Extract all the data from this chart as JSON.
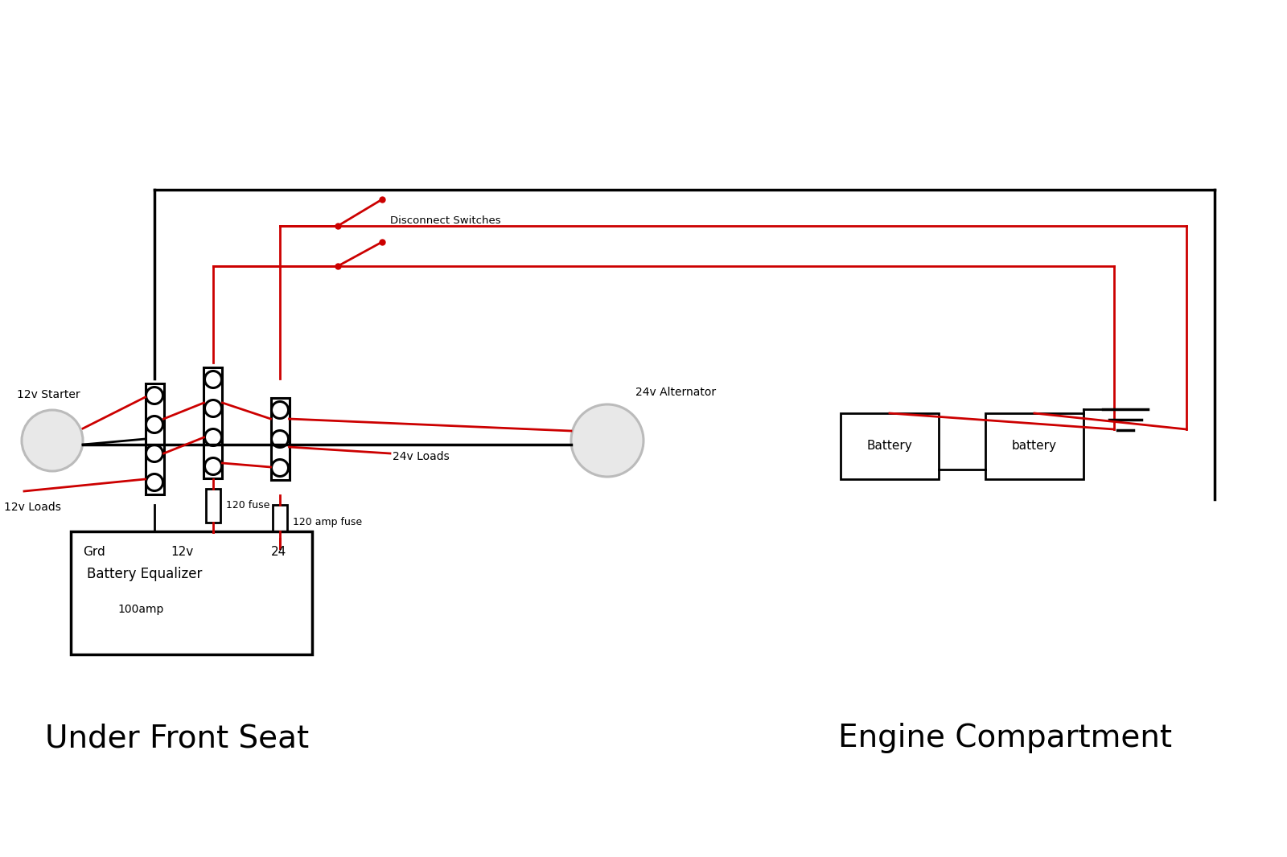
{
  "bg_color": "#ffffff",
  "black_wire_color": "#000000",
  "red_wire_color": "#cc0000",
  "gray_color": "#bbbbbb",
  "text_color": "#000000",
  "label_under_front_seat": "Under Front Seat",
  "label_engine_compartment": "Engine Compartment",
  "label_12v_starter": "12v Starter",
  "label_12v_loads": "12v Loads",
  "label_24v_loads": "24v Loads",
  "label_24v_alternator": "24v Alternator",
  "label_disconnect_switches": "Disconnect Switches",
  "label_120_fuse": "120 fuse",
  "label_120_amp_fuse": "120 amp fuse",
  "label_battery_equalizer": "Battery Equalizer",
  "label_100amp": "100amp",
  "label_grd": "Grd",
  "label_12v": "12v",
  "label_24": "24",
  "label_battery1": "Battery",
  "label_battery2": "battery"
}
